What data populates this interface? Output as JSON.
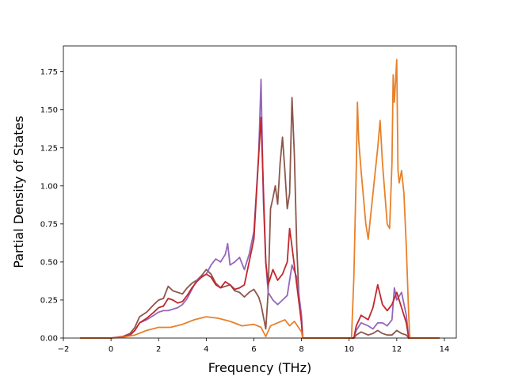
{
  "chart_data": {
    "type": "line",
    "title": "",
    "xlabel": "Frequency (THz)",
    "ylabel": "Partial Density of States",
    "xlim": [
      -2,
      14.5
    ],
    "ylim": [
      0,
      1.92
    ],
    "xticks": [
      -2,
      0,
      2,
      4,
      6,
      8,
      10,
      12,
      14
    ],
    "xtick_labels": [
      "−2",
      "0",
      "2",
      "4",
      "6",
      "8",
      "10",
      "12",
      "14"
    ],
    "yticks": [
      0,
      0.25,
      0.5,
      0.75,
      1.0,
      1.25,
      1.5,
      1.75
    ],
    "ytick_labels": [
      "0.00",
      "0.25",
      "0.50",
      "0.75",
      "1.00",
      "1.25",
      "1.50",
      "1.75"
    ],
    "grid": false,
    "legend": "none",
    "series": [
      {
        "color": "#8c564b",
        "x": [
          -1.3,
          0.0,
          0.5,
          0.8,
          1.0,
          1.2,
          1.5,
          1.8,
          2.0,
          2.2,
          2.4,
          2.6,
          2.8,
          3.0,
          3.2,
          3.4,
          3.6,
          3.8,
          4.0,
          4.2,
          4.4,
          4.6,
          4.8,
          5.0,
          5.2,
          5.4,
          5.6,
          5.8,
          6.0,
          6.2,
          6.3,
          6.5,
          6.6,
          6.7,
          6.8,
          6.9,
          7.0,
          7.1,
          7.2,
          7.3,
          7.4,
          7.5,
          7.6,
          7.7,
          7.8,
          7.9,
          8.0,
          8.05,
          9.0,
          10.2,
          10.3,
          10.5,
          10.8,
          11.0,
          11.2,
          11.4,
          11.6,
          11.8,
          12.0,
          12.2,
          12.4,
          12.5,
          13.8
        ],
        "y": [
          0,
          0,
          0.01,
          0.03,
          0.07,
          0.14,
          0.17,
          0.22,
          0.25,
          0.26,
          0.34,
          0.31,
          0.3,
          0.29,
          0.33,
          0.36,
          0.38,
          0.41,
          0.45,
          0.42,
          0.36,
          0.33,
          0.34,
          0.35,
          0.31,
          0.3,
          0.27,
          0.3,
          0.32,
          0.27,
          0.22,
          0.06,
          0.3,
          0.85,
          0.92,
          1.0,
          0.88,
          1.15,
          1.32,
          1.1,
          0.85,
          0.95,
          1.58,
          1.2,
          0.6,
          0.25,
          0.1,
          0,
          0,
          0,
          0.02,
          0.04,
          0.02,
          0.03,
          0.05,
          0.03,
          0.02,
          0.02,
          0.05,
          0.03,
          0.02,
          0,
          0
        ]
      },
      {
        "color": "#9467bd",
        "x": [
          -1.3,
          0.0,
          0.5,
          0.8,
          1.0,
          1.2,
          1.5,
          1.8,
          2.0,
          2.2,
          2.4,
          2.6,
          2.8,
          3.0,
          3.2,
          3.4,
          3.6,
          3.8,
          4.0,
          4.2,
          4.4,
          4.6,
          4.8,
          4.9,
          5.0,
          5.2,
          5.4,
          5.6,
          5.8,
          6.0,
          6.2,
          6.3,
          6.4,
          6.5,
          6.6,
          6.8,
          7.0,
          7.2,
          7.4,
          7.6,
          7.8,
          8.0,
          8.05,
          9.0,
          10.2,
          10.3,
          10.5,
          10.8,
          11.0,
          11.2,
          11.4,
          11.6,
          11.8,
          11.9,
          12.0,
          12.2,
          12.4,
          12.5,
          13.8
        ],
        "y": [
          0,
          0,
          0.01,
          0.02,
          0.05,
          0.1,
          0.12,
          0.15,
          0.17,
          0.18,
          0.18,
          0.19,
          0.2,
          0.22,
          0.26,
          0.32,
          0.38,
          0.4,
          0.42,
          0.48,
          0.52,
          0.5,
          0.55,
          0.62,
          0.48,
          0.5,
          0.53,
          0.45,
          0.55,
          0.7,
          1.2,
          1.7,
          0.9,
          0.5,
          0.3,
          0.25,
          0.22,
          0.25,
          0.28,
          0.48,
          0.4,
          0.15,
          0,
          0,
          0,
          0.05,
          0.1,
          0.08,
          0.06,
          0.1,
          0.1,
          0.08,
          0.12,
          0.33,
          0.25,
          0.3,
          0.15,
          0,
          0
        ]
      },
      {
        "color": "#c1272d",
        "x": [
          -1.3,
          0.0,
          0.5,
          0.8,
          1.0,
          1.2,
          1.5,
          1.8,
          2.0,
          2.2,
          2.4,
          2.6,
          2.8,
          3.0,
          3.2,
          3.4,
          3.6,
          3.8,
          4.0,
          4.2,
          4.4,
          4.6,
          4.8,
          5.0,
          5.2,
          5.4,
          5.6,
          5.8,
          6.0,
          6.2,
          6.3,
          6.5,
          6.6,
          6.8,
          7.0,
          7.2,
          7.4,
          7.5,
          7.6,
          7.8,
          8.0,
          8.05,
          9.0,
          10.2,
          10.3,
          10.5,
          10.8,
          11.0,
          11.2,
          11.4,
          11.6,
          11.8,
          12.0,
          12.2,
          12.4,
          12.5,
          13.8
        ],
        "y": [
          0,
          0,
          0.01,
          0.02,
          0.05,
          0.1,
          0.13,
          0.17,
          0.2,
          0.21,
          0.26,
          0.25,
          0.23,
          0.24,
          0.28,
          0.33,
          0.37,
          0.4,
          0.42,
          0.4,
          0.35,
          0.33,
          0.37,
          0.35,
          0.32,
          0.33,
          0.35,
          0.5,
          0.65,
          1.2,
          1.45,
          0.5,
          0.35,
          0.45,
          0.38,
          0.42,
          0.5,
          0.72,
          0.6,
          0.35,
          0.1,
          0,
          0,
          0,
          0.08,
          0.15,
          0.12,
          0.2,
          0.35,
          0.22,
          0.18,
          0.22,
          0.3,
          0.2,
          0.1,
          0,
          0
        ]
      },
      {
        "color": "#e8812a",
        "x": [
          -1.3,
          0.0,
          0.5,
          1.0,
          1.5,
          2.0,
          2.5,
          3.0,
          3.5,
          4.0,
          4.5,
          5.0,
          5.5,
          6.0,
          6.3,
          6.5,
          6.7,
          7.0,
          7.3,
          7.5,
          7.7,
          8.0,
          8.05,
          9.0,
          10.1,
          10.2,
          10.3,
          10.35,
          10.4,
          10.5,
          10.7,
          10.8,
          11.0,
          11.2,
          11.3,
          11.4,
          11.5,
          11.6,
          11.7,
          11.8,
          11.85,
          11.9,
          12.0,
          12.05,
          12.1,
          12.2,
          12.3,
          12.4,
          12.5,
          12.55,
          13.8
        ],
        "y": [
          0,
          0,
          0.005,
          0.02,
          0.05,
          0.07,
          0.07,
          0.09,
          0.12,
          0.14,
          0.13,
          0.11,
          0.08,
          0.09,
          0.07,
          0.01,
          0.08,
          0.1,
          0.12,
          0.08,
          0.11,
          0.04,
          0,
          0,
          0,
          0.4,
          1.1,
          1.55,
          1.3,
          1.1,
          0.75,
          0.65,
          0.95,
          1.25,
          1.43,
          1.15,
          0.95,
          0.75,
          0.72,
          1.15,
          1.73,
          1.55,
          1.83,
          1.1,
          1.02,
          1.1,
          0.95,
          0.6,
          0.15,
          0,
          0
        ]
      }
    ]
  }
}
